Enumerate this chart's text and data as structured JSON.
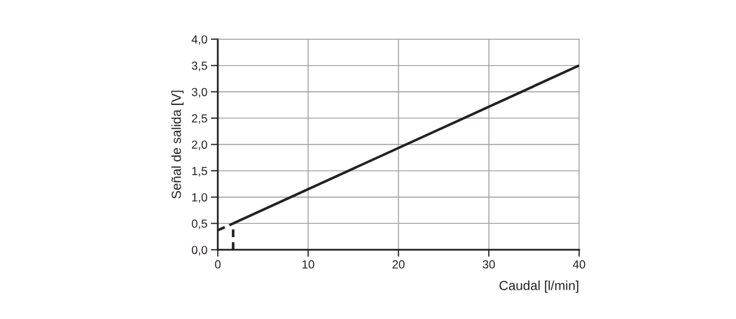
{
  "chart_data": {
    "type": "line",
    "xlabel": "Caudal [l/min]",
    "ylabel": "Señal de salida [V]",
    "xlim": [
      0,
      40
    ],
    "xticks": [
      0,
      10,
      20,
      30,
      40
    ],
    "ylim": [
      0,
      4.0
    ],
    "yticks": [
      {
        "value": 0,
        "label": "0,0"
      },
      {
        "value": 0.5,
        "label": "0,5"
      },
      {
        "value": 1.0,
        "label": "1,0"
      },
      {
        "value": 1.5,
        "label": "1,5"
      },
      {
        "value": 2.0,
        "label": "2,0"
      },
      {
        "value": 2.5,
        "label": "2,5"
      },
      {
        "value": 3.0,
        "label": "3,0"
      },
      {
        "value": 3.5,
        "label": "3,5"
      },
      {
        "value": 4.0,
        "label": "4,0"
      }
    ],
    "grid": true,
    "marker": "none",
    "series": [
      {
        "color": "#231f20",
        "x": [
          1.7,
          40
        ],
        "values": [
          0.5,
          3.5
        ],
        "line_style": "solid"
      },
      {
        "color": "#231f20",
        "x": [
          0,
          1.7
        ],
        "values": [
          0.37,
          0.5
        ],
        "line_style": "dashed"
      },
      {
        "color": "#231f20",
        "x": [
          1.7,
          1.7
        ],
        "values": [
          0,
          0.5
        ],
        "line_style": "dashed"
      }
    ]
  }
}
